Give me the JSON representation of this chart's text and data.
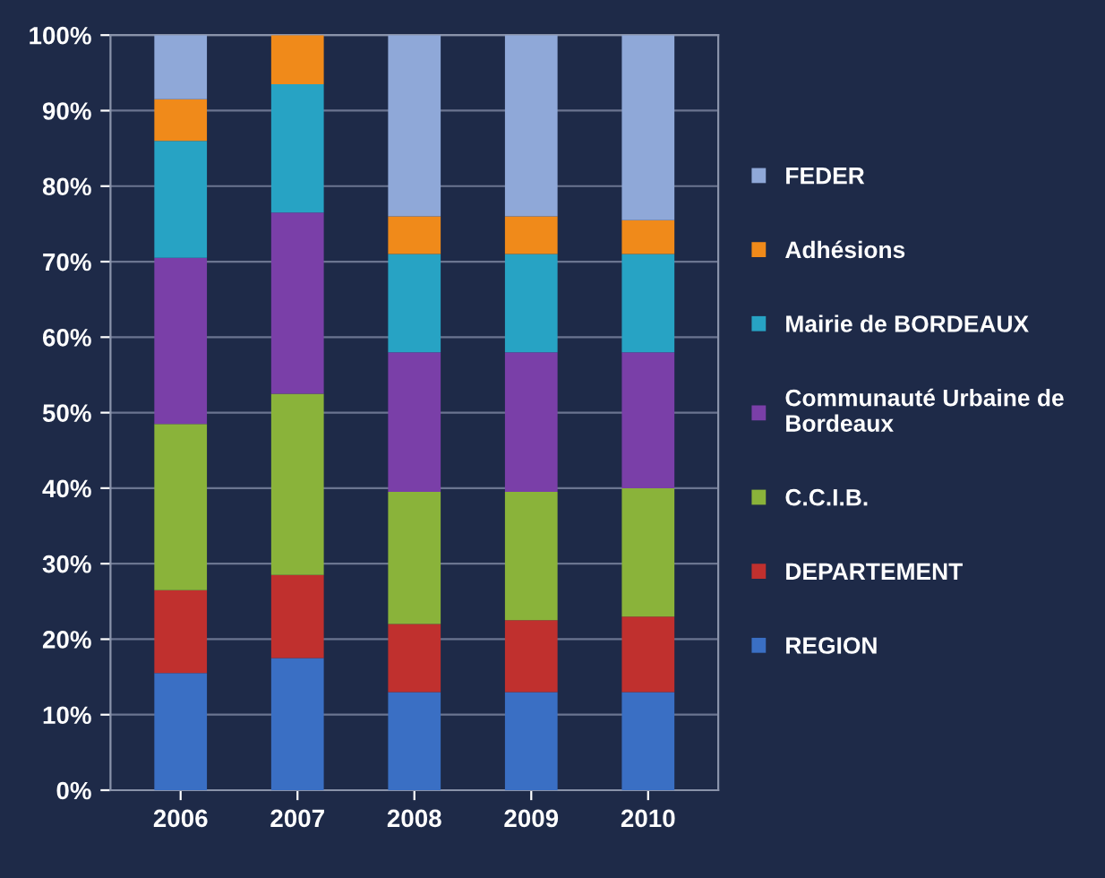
{
  "chart_data": {
    "type": "bar",
    "stacked": true,
    "categories": [
      "2006",
      "2007",
      "2008",
      "2009",
      "2010"
    ],
    "series": [
      {
        "name": "REGION",
        "color": "#3a6fc4",
        "values": [
          15.5,
          17.5,
          13,
          13,
          13
        ]
      },
      {
        "name": "DEPARTEMENT",
        "color": "#c0302e",
        "values": [
          11,
          11,
          9,
          9.5,
          10
        ]
      },
      {
        "name": "C.C.I.B.",
        "color": "#8ab33a",
        "values": [
          22,
          24,
          17.5,
          17,
          17
        ]
      },
      {
        "name": "Communauté Urbaine de\nBordeaux",
        "color": "#7a3fa8",
        "values": [
          22,
          24,
          18.5,
          18.5,
          18
        ]
      },
      {
        "name": "Mairie de BORDEAUX",
        "color": "#27a3c4",
        "values": [
          15.5,
          17,
          13,
          13,
          13
        ]
      },
      {
        "name": "Adhésions",
        "color": "#f08a1a",
        "values": [
          5.5,
          6.5,
          5,
          5,
          4.5
        ]
      },
      {
        "name": "FEDER",
        "color": "#8fa8d8",
        "values": [
          8.5,
          0,
          24,
          24,
          24.5
        ]
      }
    ],
    "ylim": [
      0,
      100
    ],
    "yticks": [
      {
        "value": 0,
        "label": "0%"
      },
      {
        "value": 10,
        "label": "10%"
      },
      {
        "value": 20,
        "label": "20%"
      },
      {
        "value": 30,
        "label": "30%"
      },
      {
        "value": 40,
        "label": "40%"
      },
      {
        "value": 50,
        "label": "50%"
      },
      {
        "value": 60,
        "label": "60%"
      },
      {
        "value": 70,
        "label": "70%"
      },
      {
        "value": 80,
        "label": "80%"
      },
      {
        "value": 90,
        "label": "90%"
      },
      {
        "value": 100,
        "label": "100%"
      }
    ],
    "grid": "y",
    "legend": "right"
  }
}
